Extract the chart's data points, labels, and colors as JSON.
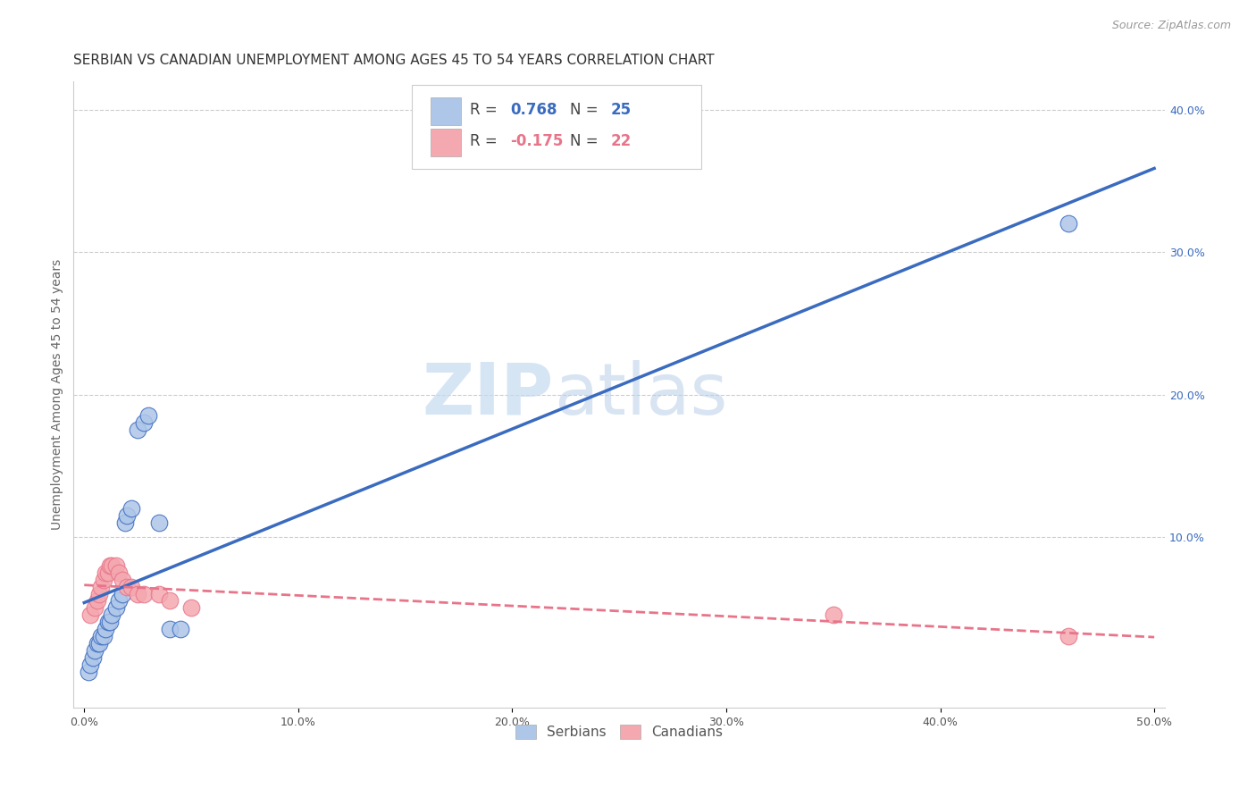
{
  "title": "SERBIAN VS CANADIAN UNEMPLOYMENT AMONG AGES 45 TO 54 YEARS CORRELATION CHART",
  "source": "Source: ZipAtlas.com",
  "xlabel_ticks": [
    "0.0%",
    "10.0%",
    "20.0%",
    "30.0%",
    "40.0%",
    "50.0%"
  ],
  "xlabel_vals": [
    0.0,
    0.1,
    0.2,
    0.3,
    0.4,
    0.5
  ],
  "ylabel": "Unemployment Among Ages 45 to 54 years",
  "ylabel_ticks": [
    "10.0%",
    "20.0%",
    "30.0%",
    "40.0%"
  ],
  "ylabel_vals": [
    0.1,
    0.2,
    0.3,
    0.4
  ],
  "xlim": [
    -0.005,
    0.505
  ],
  "ylim": [
    -0.02,
    0.42
  ],
  "watermark_zip": "ZIP",
  "watermark_atlas": "atlas",
  "serbian_R": "0.768",
  "serbian_N": "25",
  "canadian_R": "-0.175",
  "canadian_N": "22",
  "serbian_color": "#aec6e8",
  "canadian_color": "#f4a8b0",
  "serbian_line_color": "#3a6bbf",
  "canadian_line_color": "#e8748a",
  "serbian_scatter_x": [
    0.002,
    0.003,
    0.004,
    0.005,
    0.006,
    0.007,
    0.008,
    0.009,
    0.01,
    0.011,
    0.012,
    0.013,
    0.015,
    0.016,
    0.018,
    0.019,
    0.02,
    0.022,
    0.025,
    0.028,
    0.03,
    0.035,
    0.04,
    0.045,
    0.46
  ],
  "serbian_scatter_y": [
    0.005,
    0.01,
    0.015,
    0.02,
    0.025,
    0.025,
    0.03,
    0.03,
    0.035,
    0.04,
    0.04,
    0.045,
    0.05,
    0.055,
    0.06,
    0.11,
    0.115,
    0.12,
    0.175,
    0.18,
    0.185,
    0.11,
    0.035,
    0.035,
    0.32
  ],
  "canadian_scatter_x": [
    0.003,
    0.005,
    0.006,
    0.007,
    0.008,
    0.009,
    0.01,
    0.011,
    0.012,
    0.013,
    0.015,
    0.016,
    0.018,
    0.02,
    0.022,
    0.025,
    0.028,
    0.035,
    0.04,
    0.05,
    0.35,
    0.46
  ],
  "canadian_scatter_y": [
    0.045,
    0.05,
    0.055,
    0.06,
    0.065,
    0.07,
    0.075,
    0.075,
    0.08,
    0.08,
    0.08,
    0.075,
    0.07,
    0.065,
    0.065,
    0.06,
    0.06,
    0.06,
    0.055,
    0.05,
    0.045,
    0.03
  ],
  "grid_color": "#cccccc",
  "background_color": "#ffffff",
  "title_fontsize": 11,
  "axis_label_fontsize": 10,
  "tick_fontsize": 9,
  "legend_fontsize": 12
}
